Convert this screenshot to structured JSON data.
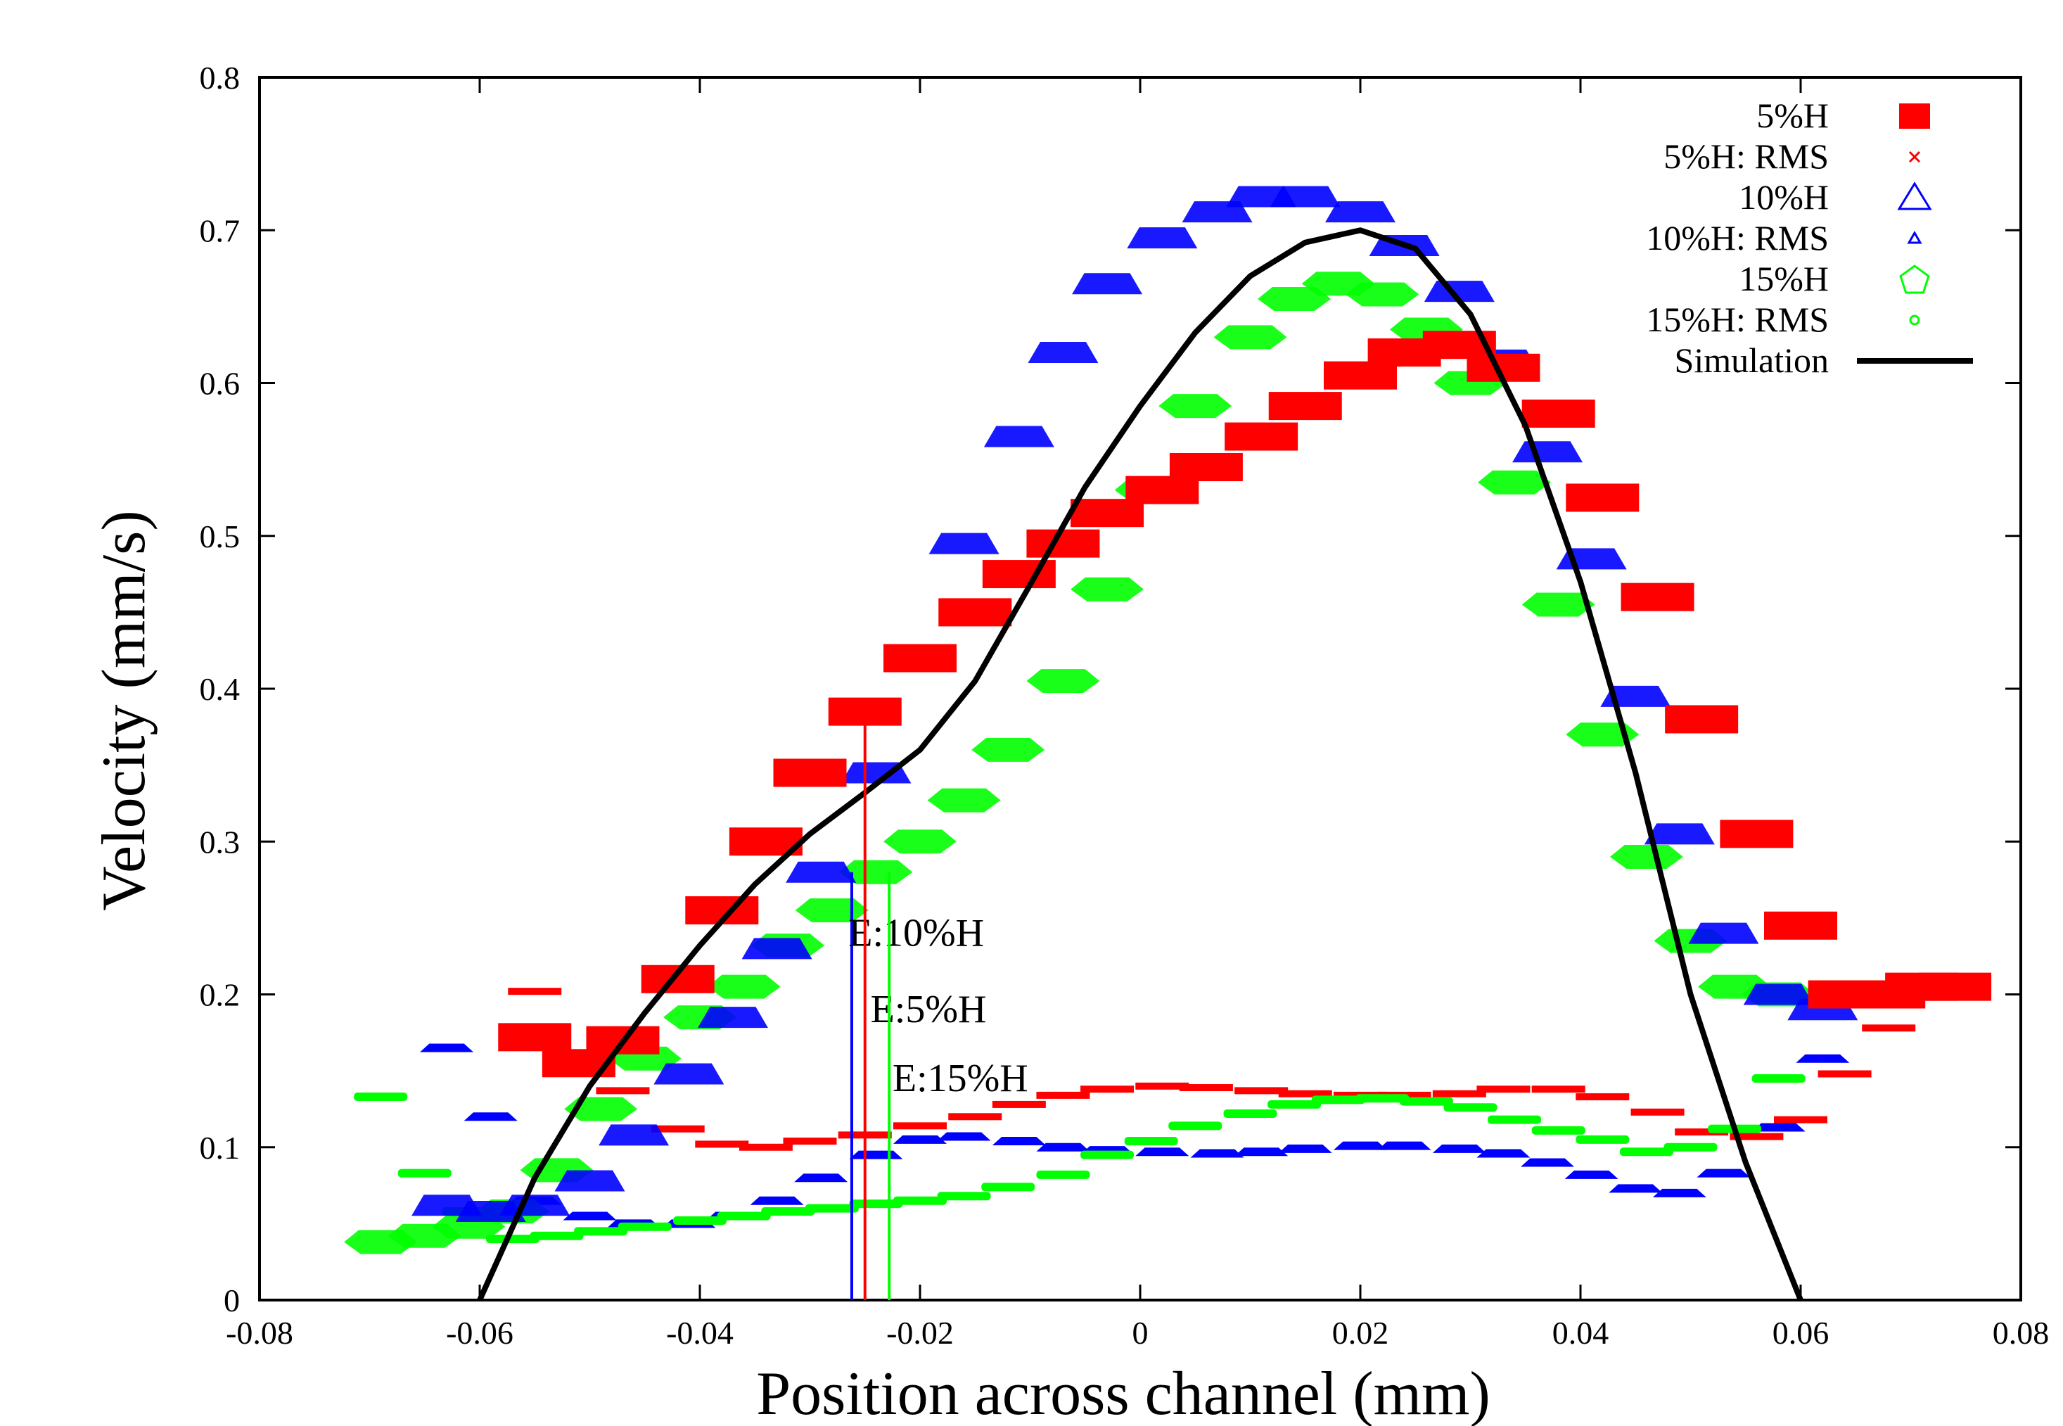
{
  "chart_data": {
    "type": "scatter",
    "title": "",
    "xlabel": "Position across channel (mm)",
    "ylabel": "Velocity (mm/s)",
    "xlim": [
      -0.08,
      0.08
    ],
    "ylim": [
      0,
      0.8
    ],
    "x_ticks": [
      "-0.08",
      "-0.06",
      "-0.04",
      "-0.02",
      "0",
      "0.02",
      "0.04",
      "0.06",
      "0.08"
    ],
    "y_ticks": [
      "0",
      "0.1",
      "0.2",
      "0.3",
      "0.4",
      "0.5",
      "0.6",
      "0.7",
      "0.8"
    ],
    "grid": false,
    "legend_position": "top-right",
    "colors": {
      "red": "#ff0000",
      "blue": "#0000ff",
      "green": "#00ff00",
      "black": "#000000"
    },
    "series": [
      {
        "name": "5%H",
        "marker": "square",
        "color": "#ff0000",
        "x": [
          -0.055,
          -0.051,
          -0.047,
          -0.042,
          -0.038,
          -0.034,
          -0.03,
          -0.025,
          -0.02,
          -0.015,
          -0.011,
          -0.007,
          -0.003,
          0.002,
          0.006,
          0.011,
          0.015,
          0.02,
          0.024,
          0.029,
          0.033,
          0.038,
          0.042,
          0.047,
          0.051,
          0.056,
          0.06,
          0.064,
          0.068,
          0.071,
          0.074
        ],
        "y": [
          0.172,
          0.155,
          0.17,
          0.21,
          0.255,
          0.3,
          0.345,
          0.385,
          0.42,
          0.45,
          0.475,
          0.495,
          0.515,
          0.53,
          0.545,
          0.565,
          0.585,
          0.605,
          0.62,
          0.625,
          0.61,
          0.58,
          0.525,
          0.46,
          0.38,
          0.305,
          0.245,
          0.2,
          0.2,
          0.205,
          0.205
        ]
      },
      {
        "name": "5%H: RMS",
        "marker": "x-small",
        "color": "#ff0000",
        "x": [
          -0.055,
          -0.047,
          -0.042,
          -0.038,
          -0.034,
          -0.03,
          -0.025,
          -0.02,
          -0.015,
          -0.011,
          -0.007,
          -0.003,
          0.002,
          0.006,
          0.011,
          0.015,
          0.02,
          0.024,
          0.029,
          0.033,
          0.038,
          0.042,
          0.047,
          0.051,
          0.056,
          0.06,
          0.064,
          0.068
        ],
        "y": [
          0.202,
          0.137,
          0.112,
          0.102,
          0.1,
          0.104,
          0.108,
          0.114,
          0.12,
          0.128,
          0.134,
          0.138,
          0.14,
          0.139,
          0.137,
          0.135,
          0.134,
          0.134,
          0.135,
          0.138,
          0.138,
          0.133,
          0.123,
          0.11,
          0.107,
          0.118,
          0.148,
          0.178
        ]
      },
      {
        "name": "10%H",
        "marker": "triangle",
        "color": "#0000ff",
        "x": [
          -0.063,
          -0.059,
          -0.055,
          -0.05,
          -0.046,
          -0.041,
          -0.037,
          -0.033,
          -0.029,
          -0.024,
          -0.02,
          -0.016,
          -0.011,
          -0.007,
          -0.003,
          0.002,
          0.007,
          0.011,
          0.015,
          0.02,
          0.024,
          0.029,
          0.033,
          0.037,
          0.041,
          0.045,
          0.049,
          0.053,
          0.058,
          0.062
        ],
        "y": [
          0.062,
          0.058,
          0.062,
          0.078,
          0.108,
          0.148,
          0.185,
          0.23,
          0.28,
          0.345,
          0.42,
          0.495,
          0.565,
          0.62,
          0.665,
          0.695,
          0.712,
          0.722,
          0.722,
          0.712,
          0.69,
          0.66,
          0.615,
          0.555,
          0.485,
          0.395,
          0.305,
          0.24,
          0.2,
          0.19
        ]
      },
      {
        "name": "10%H: RMS",
        "marker": "triangle-small",
        "color": "#0000ff",
        "x": [
          -0.063,
          -0.059,
          -0.055,
          -0.05,
          -0.046,
          -0.041,
          -0.037,
          -0.033,
          -0.029,
          -0.024,
          -0.02,
          -0.016,
          -0.011,
          -0.007,
          -0.003,
          0.002,
          0.007,
          0.011,
          0.015,
          0.02,
          0.024,
          0.029,
          0.033,
          0.037,
          0.041,
          0.045,
          0.049,
          0.053,
          0.058,
          0.062
        ],
        "y": [
          0.165,
          0.12,
          0.065,
          0.055,
          0.05,
          0.05,
          0.055,
          0.065,
          0.08,
          0.095,
          0.105,
          0.107,
          0.104,
          0.1,
          0.098,
          0.097,
          0.096,
          0.097,
          0.099,
          0.101,
          0.101,
          0.099,
          0.096,
          0.09,
          0.082,
          0.073,
          0.07,
          0.083,
          0.113,
          0.158
        ]
      },
      {
        "name": "15%H",
        "marker": "pentagon",
        "color": "#00ff00",
        "x": [
          -0.069,
          -0.065,
          -0.061,
          -0.057,
          -0.053,
          -0.049,
          -0.045,
          -0.04,
          -0.036,
          -0.032,
          -0.028,
          -0.024,
          -0.02,
          -0.016,
          -0.012,
          -0.007,
          -0.003,
          0.001,
          0.005,
          0.01,
          0.014,
          0.018,
          0.022,
          0.026,
          0.03,
          0.034,
          0.038,
          0.042,
          0.046,
          0.05,
          0.054,
          0.058
        ],
        "y": [
          0.038,
          0.042,
          0.048,
          0.058,
          0.085,
          0.125,
          0.158,
          0.185,
          0.205,
          0.232,
          0.255,
          0.28,
          0.3,
          0.327,
          0.36,
          0.405,
          0.465,
          0.53,
          0.585,
          0.63,
          0.655,
          0.665,
          0.658,
          0.635,
          0.6,
          0.535,
          0.455,
          0.37,
          0.29,
          0.235,
          0.205,
          0.2
        ]
      },
      {
        "name": "15%H: RMS",
        "marker": "circle-small",
        "color": "#00ff00",
        "x": [
          -0.069,
          -0.065,
          -0.061,
          -0.057,
          -0.053,
          -0.049,
          -0.045,
          -0.04,
          -0.036,
          -0.032,
          -0.028,
          -0.024,
          -0.02,
          -0.016,
          -0.012,
          -0.007,
          -0.003,
          0.001,
          0.005,
          0.01,
          0.014,
          0.018,
          0.022,
          0.026,
          0.03,
          0.034,
          0.038,
          0.042,
          0.046,
          0.05,
          0.054,
          0.058
        ],
        "y": [
          0.133,
          0.083,
          0.058,
          0.04,
          0.042,
          0.045,
          0.048,
          0.052,
          0.055,
          0.058,
          0.06,
          0.063,
          0.065,
          0.068,
          0.074,
          0.082,
          0.095,
          0.104,
          0.114,
          0.122,
          0.128,
          0.131,
          0.132,
          0.13,
          0.126,
          0.118,
          0.111,
          0.105,
          0.097,
          0.1,
          0.112,
          0.145
        ]
      },
      {
        "name": "Simulation",
        "marker": "line",
        "color": "#000000",
        "x": [
          -0.06,
          -0.055,
          -0.05,
          -0.045,
          -0.04,
          -0.035,
          -0.03,
          -0.025,
          -0.02,
          -0.015,
          -0.01,
          -0.005,
          0.0,
          0.005,
          0.01,
          0.015,
          0.02,
          0.025,
          0.03,
          0.035,
          0.04,
          0.045,
          0.05,
          0.055,
          0.06
        ],
        "y": [
          0.0,
          0.08,
          0.14,
          0.188,
          0.232,
          0.272,
          0.305,
          0.332,
          0.36,
          0.405,
          0.468,
          0.532,
          0.585,
          0.633,
          0.67,
          0.692,
          0.7,
          0.688,
          0.645,
          0.572,
          0.47,
          0.345,
          0.2,
          0.09,
          0.0
        ]
      }
    ],
    "annotations": [
      {
        "text": "E:10%H",
        "x": -0.0262,
        "y_bottom": 0.0,
        "y_top": 0.28,
        "color": "#0000ff"
      },
      {
        "text": "E:5%H",
        "x": -0.025,
        "y_bottom": 0.0,
        "y_top": 0.38,
        "color": "#ff0000"
      },
      {
        "text": "E:15%H",
        "x": -0.0228,
        "y_bottom": 0.0,
        "y_top": 0.28,
        "color": "#00ff00"
      }
    ]
  }
}
